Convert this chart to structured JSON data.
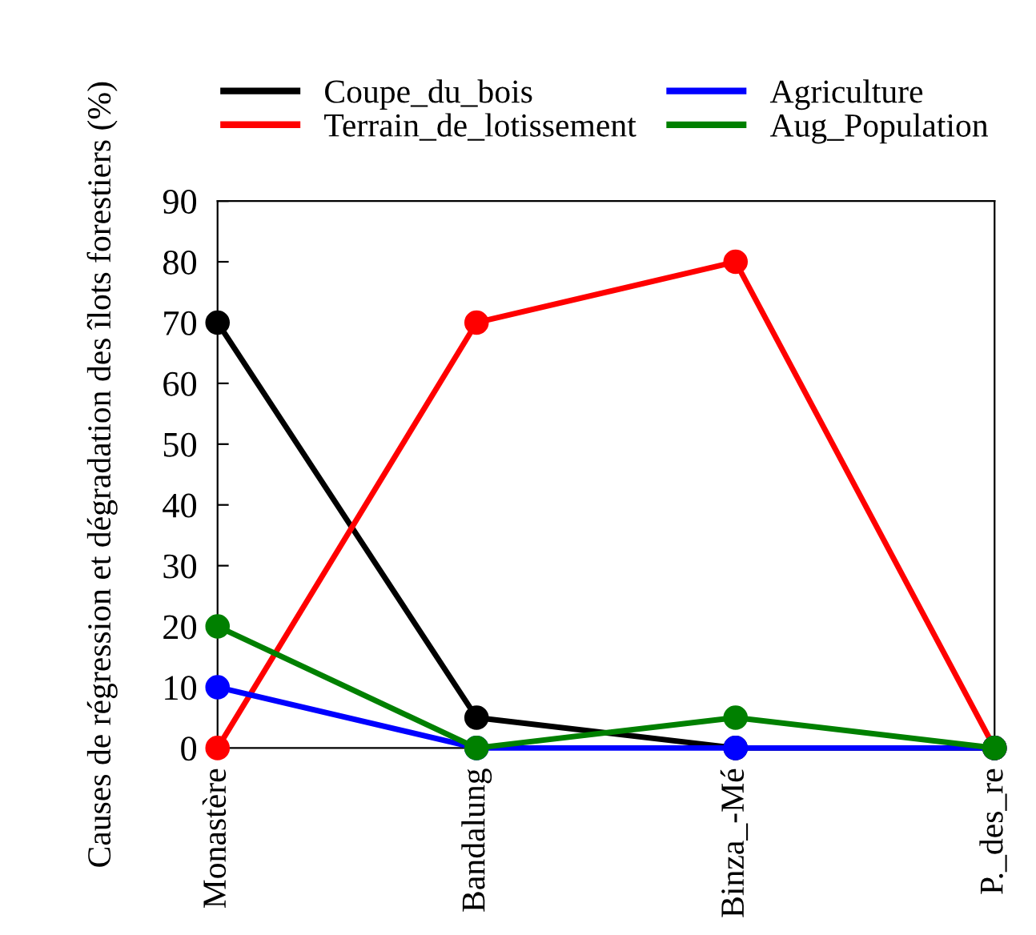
{
  "chart_data": {
    "type": "line",
    "ylabel": "Causes de régression et dégradation des îlots forestiers (%)",
    "categories": [
      "Monastère",
      "Bandalung",
      "Binza_-Mé",
      "P._des_re"
    ],
    "series": [
      {
        "name": "Coupe_du_bois",
        "color": "#000000",
        "values": [
          70,
          5,
          0,
          0
        ]
      },
      {
        "name": "Terrain_de_lotissement",
        "color": "#ff0000",
        "values": [
          0,
          70,
          80,
          0
        ]
      },
      {
        "name": "Agriculture",
        "color": "#0000ff",
        "values": [
          10,
          0,
          0,
          0
        ]
      },
      {
        "name": "Aug_Population",
        "color": "#008000",
        "values": [
          20,
          0,
          5,
          0
        ]
      }
    ],
    "ylim": [
      0,
      90
    ],
    "yticks": [
      0,
      10,
      20,
      30,
      40,
      50,
      60,
      70,
      80,
      90
    ],
    "grid": false,
    "legend": "top",
    "marker": "circle",
    "line_style": "solid"
  }
}
